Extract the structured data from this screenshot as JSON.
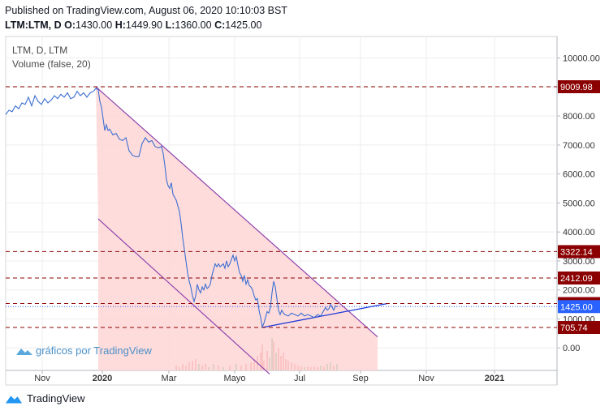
{
  "header": {
    "published": "Published on TradingView.com, August 06, 2020 10:10:03 BST",
    "ohlc_line": {
      "symbol": "LTM:LTM, D",
      "o_label": "O:",
      "o": "1430.00",
      "h_label": "H:",
      "h": "1449.90",
      "l_label": "L:",
      "l": "1360.00",
      "c_label": "C:",
      "c": "1425.00"
    }
  },
  "legend": {
    "symbol": "LTM, D, LTM",
    "volume": "Volume (false, 20)"
  },
  "watermark": "gráficos por TradingView",
  "footer": {
    "brand": "TradingView"
  },
  "colors": {
    "price_line": "#3b6fd1",
    "level_line": "#8b0000",
    "level_label_bg": "#8b0000",
    "last_price_bg": "#2962ff",
    "channel_line": "#8e44ad",
    "channel_fill": "#ffd6d6",
    "trend_line": "#1e3ad6",
    "volume_red": "#e06060",
    "volume_green": "#3aa860"
  },
  "chart_data": {
    "type": "line",
    "title": "LTM, D, LTM",
    "x_tick_labels": [
      "Nov",
      "2020",
      "Mar",
      "Mayo",
      "Jul",
      "Sep",
      "Nov",
      "2021"
    ],
    "y_tick_labels": [
      "10000.00",
      "9000.00",
      "8000.00",
      "7000.00",
      "6000.00",
      "5000.00",
      "4000.00",
      "3000.00",
      "2000.00",
      "1000.00",
      "0.00"
    ],
    "ylim": [
      -900,
      10500
    ],
    "grid": true,
    "series": [
      {
        "values": [
          [
            0,
            8050
          ],
          [
            4,
            8200
          ],
          [
            8,
            8150
          ],
          [
            12,
            8350
          ],
          [
            16,
            8250
          ],
          [
            20,
            8450
          ],
          [
            24,
            8400
          ],
          [
            28,
            8650
          ],
          [
            32,
            8350
          ],
          [
            36,
            8700
          ],
          [
            40,
            8500
          ],
          [
            44,
            8400
          ],
          [
            48,
            8600
          ],
          [
            52,
            8450
          ],
          [
            56,
            8550
          ],
          [
            60,
            8700
          ],
          [
            64,
            8600
          ],
          [
            68,
            8750
          ],
          [
            72,
            8650
          ],
          [
            76,
            8800
          ],
          [
            80,
            8600
          ],
          [
            84,
            8650
          ],
          [
            88,
            8850
          ],
          [
            92,
            8700
          ],
          [
            96,
            8800
          ],
          [
            100,
            8650
          ],
          [
            104,
            8800
          ],
          [
            108,
            8850
          ],
          [
            111,
            8950
          ],
          [
            114,
            8900
          ],
          [
            116,
            8500
          ],
          [
            118,
            8300
          ],
          [
            120,
            7900
          ],
          [
            122,
            7500
          ],
          [
            124,
            7700
          ],
          [
            126,
            7500
          ],
          [
            128,
            7550
          ],
          [
            132,
            7350
          ],
          [
            136,
            7400
          ],
          [
            140,
            7200
          ],
          [
            144,
            7150
          ],
          [
            148,
            7250
          ],
          [
            152,
            6800
          ],
          [
            156,
            6650
          ],
          [
            160,
            6600
          ],
          [
            164,
            6600
          ],
          [
            168,
            7050
          ],
          [
            172,
            7250
          ],
          [
            176,
            7100
          ],
          [
            180,
            7150
          ],
          [
            184,
            6950
          ],
          [
            188,
            6900
          ],
          [
            192,
            6950
          ],
          [
            194,
            6700
          ],
          [
            196,
            6300
          ],
          [
            198,
            5800
          ],
          [
            200,
            5600
          ],
          [
            202,
            5500
          ],
          [
            204,
            5700
          ],
          [
            206,
            5300
          ],
          [
            208,
            5200
          ],
          [
            210,
            5100
          ],
          [
            212,
            4900
          ],
          [
            214,
            4700
          ],
          [
            216,
            4300
          ],
          [
            218,
            3800
          ],
          [
            220,
            3400
          ],
          [
            222,
            3000
          ],
          [
            224,
            2600
          ],
          [
            226,
            2300
          ],
          [
            228,
            2100
          ],
          [
            230,
            1800
          ],
          [
            232,
            1600
          ],
          [
            234,
            1800
          ],
          [
            236,
            2200
          ],
          [
            238,
            2000
          ],
          [
            240,
            1900
          ],
          [
            242,
            2100
          ],
          [
            244,
            2000
          ],
          [
            246,
            2200
          ],
          [
            248,
            2050
          ],
          [
            250,
            2100
          ],
          [
            252,
            2200
          ],
          [
            254,
            2500
          ],
          [
            256,
            2700
          ],
          [
            258,
            2900
          ],
          [
            260,
            2800
          ],
          [
            262,
            2900
          ],
          [
            264,
            2800
          ],
          [
            266,
            2850
          ],
          [
            268,
            2900
          ],
          [
            270,
            2750
          ],
          [
            272,
            3000
          ],
          [
            274,
            2800
          ],
          [
            276,
            2900
          ],
          [
            278,
            3050
          ],
          [
            280,
            3200
          ],
          [
            282,
            3000
          ],
          [
            284,
            3150
          ],
          [
            286,
            2850
          ],
          [
            288,
            2600
          ],
          [
            290,
            2500
          ],
          [
            292,
            2300
          ],
          [
            294,
            2500
          ],
          [
            296,
            2200
          ],
          [
            298,
            2350
          ],
          [
            300,
            2150
          ],
          [
            302,
            2100
          ],
          [
            304,
            2000
          ],
          [
            306,
            1800
          ],
          [
            308,
            1650
          ],
          [
            310,
            1700
          ],
          [
            312,
            1300
          ],
          [
            314,
            1050
          ],
          [
            316,
            720
          ],
          [
            318,
            850
          ],
          [
            320,
            1050
          ],
          [
            322,
            1250
          ],
          [
            324,
            1200
          ],
          [
            326,
            1400
          ],
          [
            328,
            1900
          ],
          [
            330,
            2300
          ],
          [
            332,
            2100
          ],
          [
            334,
            1700
          ],
          [
            336,
            1300
          ],
          [
            338,
            1150
          ],
          [
            340,
            1300
          ],
          [
            342,
            1200
          ],
          [
            344,
            1150
          ],
          [
            348,
            1100
          ],
          [
            352,
            1200
          ],
          [
            356,
            1150
          ],
          [
            360,
            1100
          ],
          [
            364,
            1200
          ],
          [
            368,
            1100
          ],
          [
            372,
            1150
          ],
          [
            376,
            1100
          ],
          [
            380,
            1050
          ],
          [
            384,
            1150
          ],
          [
            388,
            1100
          ],
          [
            392,
            1300
          ],
          [
            394,
            1400
          ],
          [
            396,
            1300
          ],
          [
            398,
            1350
          ],
          [
            400,
            1500
          ],
          [
            402,
            1400
          ],
          [
            404,
            1300
          ],
          [
            406,
            1450
          ],
          [
            408,
            1425
          ]
        ]
      }
    ],
    "levels": [
      {
        "label": "9009.98",
        "value": 9009.98
      },
      {
        "label": "3322.14",
        "value": 3322.14
      },
      {
        "label": "2412.09",
        "value": 2412.09
      },
      {
        "label": "1530.48",
        "value": 1530.48
      },
      {
        "label": "705.74",
        "value": 705.74
      }
    ],
    "last_price": {
      "label": "1425.00",
      "value": 1425.0
    },
    "channel": {
      "upper": [
        [
          111,
          9009.98
        ],
        [
          458,
          380
        ]
      ],
      "lower": [
        [
          114,
          4450
        ],
        [
          325,
          -900
        ]
      ],
      "fill_bottom_x": [
        114,
        458
      ]
    },
    "trend_line": [
      [
        316,
        705.74
      ],
      [
        470,
        1530.48
      ]
    ],
    "volume": [
      {
        "x": 210,
        "v": 0.15,
        "c": "red"
      },
      {
        "x": 214,
        "v": 0.1,
        "c": "red"
      },
      {
        "x": 218,
        "v": 0.2,
        "c": "red"
      },
      {
        "x": 222,
        "v": 0.15,
        "c": "red"
      },
      {
        "x": 226,
        "v": 0.25,
        "c": "red"
      },
      {
        "x": 230,
        "v": 0.3,
        "c": "red"
      },
      {
        "x": 234,
        "v": 0.35,
        "c": "red"
      },
      {
        "x": 238,
        "v": 0.2,
        "c": "green"
      },
      {
        "x": 242,
        "v": 0.15,
        "c": "red"
      },
      {
        "x": 246,
        "v": 0.2,
        "c": "red"
      },
      {
        "x": 250,
        "v": 0.1,
        "c": "green"
      },
      {
        "x": 256,
        "v": 0.2,
        "c": "green"
      },
      {
        "x": 262,
        "v": 0.15,
        "c": "red"
      },
      {
        "x": 268,
        "v": 0.1,
        "c": "green"
      },
      {
        "x": 276,
        "v": 0.15,
        "c": "red"
      },
      {
        "x": 284,
        "v": 0.2,
        "c": "green"
      },
      {
        "x": 290,
        "v": 0.15,
        "c": "red"
      },
      {
        "x": 296,
        "v": 0.2,
        "c": "red"
      },
      {
        "x": 302,
        "v": 0.25,
        "c": "red"
      },
      {
        "x": 306,
        "v": 0.35,
        "c": "red"
      },
      {
        "x": 310,
        "v": 0.45,
        "c": "red"
      },
      {
        "x": 314,
        "v": 0.55,
        "c": "red"
      },
      {
        "x": 316,
        "v": 0.8,
        "c": "red"
      },
      {
        "x": 318,
        "v": 0.3,
        "c": "red"
      },
      {
        "x": 322,
        "v": 0.6,
        "c": "red"
      },
      {
        "x": 325,
        "v": 0.4,
        "c": "green"
      },
      {
        "x": 328,
        "v": 1.0,
        "c": "green"
      },
      {
        "x": 330,
        "v": 0.9,
        "c": "red"
      },
      {
        "x": 333,
        "v": 0.55,
        "c": "green"
      },
      {
        "x": 336,
        "v": 0.7,
        "c": "red"
      },
      {
        "x": 339,
        "v": 0.45,
        "c": "red"
      },
      {
        "x": 342,
        "v": 0.55,
        "c": "red"
      },
      {
        "x": 345,
        "v": 0.35,
        "c": "red"
      },
      {
        "x": 348,
        "v": 0.3,
        "c": "red"
      },
      {
        "x": 352,
        "v": 0.25,
        "c": "red"
      },
      {
        "x": 356,
        "v": 0.2,
        "c": "red"
      },
      {
        "x": 360,
        "v": 0.15,
        "c": "red"
      },
      {
        "x": 364,
        "v": 0.12,
        "c": "red"
      },
      {
        "x": 368,
        "v": 0.1,
        "c": "green"
      },
      {
        "x": 372,
        "v": 0.12,
        "c": "red"
      },
      {
        "x": 376,
        "v": 0.1,
        "c": "red"
      },
      {
        "x": 380,
        "v": 0.12,
        "c": "red"
      },
      {
        "x": 384,
        "v": 0.1,
        "c": "red"
      },
      {
        "x": 388,
        "v": 0.15,
        "c": "green"
      },
      {
        "x": 392,
        "v": 0.12,
        "c": "red"
      },
      {
        "x": 396,
        "v": 0.2,
        "c": "green"
      },
      {
        "x": 400,
        "v": 0.25,
        "c": "green"
      },
      {
        "x": 404,
        "v": 0.15,
        "c": "red"
      },
      {
        "x": 408,
        "v": 0.2,
        "c": "green"
      }
    ]
  }
}
